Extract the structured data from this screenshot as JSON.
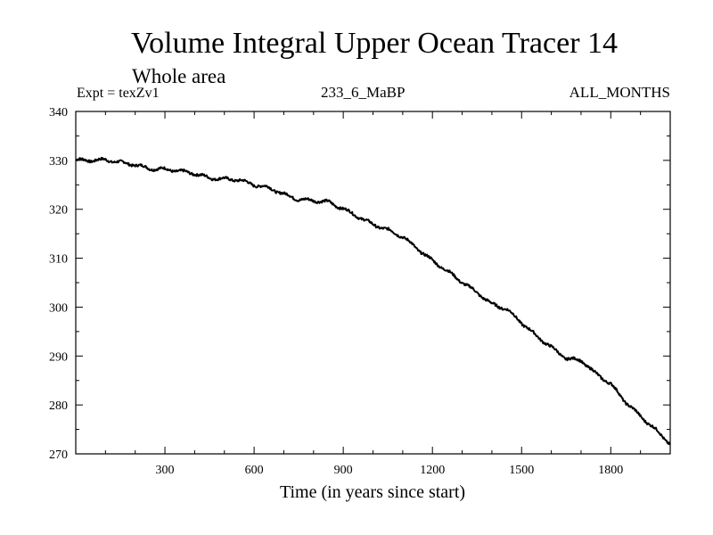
{
  "header": {
    "title": "Volume Integral Upper Ocean Tracer 14",
    "subtitle": "Whole area",
    "expt": "Expt = texZv1",
    "run": "233_6_MaBP",
    "months": "ALL_MONTHS"
  },
  "chart_data": {
    "type": "line",
    "title": "Volume Integral Upper Ocean Tracer 14",
    "xlabel": "Time (in years since start)",
    "ylabel": "",
    "xlim": [
      0,
      2000
    ],
    "ylim": [
      270,
      340
    ],
    "x_ticks": [
      300,
      600,
      900,
      1200,
      1500,
      1800
    ],
    "y_ticks": [
      270,
      280,
      290,
      300,
      310,
      320,
      330,
      340
    ],
    "series": [
      {
        "name": "Tracer 14",
        "color": "#000000",
        "x": [
          0,
          50,
          100,
          150,
          200,
          250,
          300,
          350,
          400,
          450,
          500,
          550,
          600,
          650,
          700,
          750,
          800,
          850,
          900,
          950,
          1000,
          1050,
          1100,
          1150,
          1200,
          1250,
          1300,
          1350,
          1400,
          1450,
          1500,
          1550,
          1600,
          1650,
          1700,
          1750,
          1800,
          1850,
          1900,
          1950,
          2000
        ],
        "y": [
          330.1,
          330.0,
          330.1,
          329.6,
          329.1,
          328.3,
          328.2,
          327.8,
          327.3,
          326.4,
          326.2,
          326.0,
          325.0,
          324.4,
          323.1,
          322.0,
          321.8,
          321.5,
          320.1,
          318.5,
          316.9,
          315.8,
          314.4,
          311.9,
          309.5,
          307.4,
          305.1,
          303.0,
          300.6,
          299.6,
          296.8,
          294.1,
          291.8,
          289.5,
          289.1,
          286.4,
          284.3,
          280.6,
          277.7,
          275.0,
          272.0
        ]
      }
    ]
  }
}
